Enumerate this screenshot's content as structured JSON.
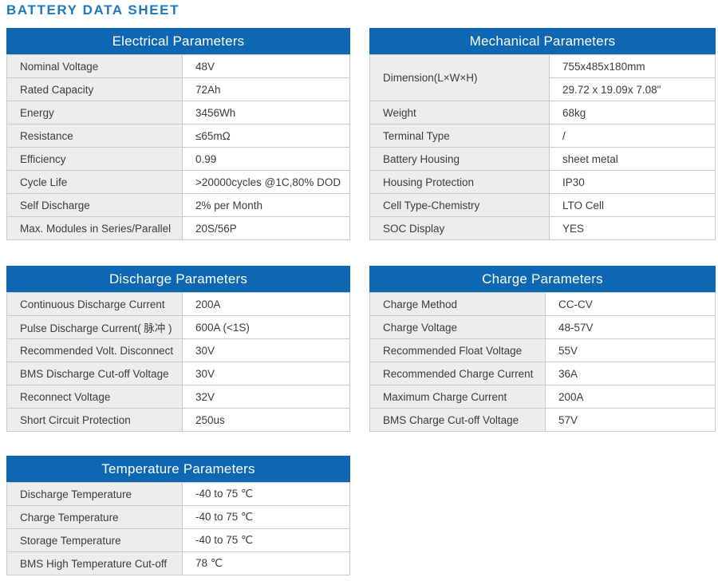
{
  "page_title": "BATTERY DATA SHEET",
  "colors": {
    "header_blue": "#0e67b2",
    "title_blue": "#1b78c1",
    "label_cell_bg": "#ededed",
    "border_gray": "#c9c9c9",
    "text": "#3b3b3b"
  },
  "tables": {
    "electrical": {
      "title": "Electrical Parameters",
      "rows": [
        {
          "label": "Nominal Voltage",
          "value": "48V"
        },
        {
          "label": "Rated Capacity",
          "value": "72Ah"
        },
        {
          "label": "Energy",
          "value": "3456Wh"
        },
        {
          "label": "Resistance",
          "value": "≤65mΩ"
        },
        {
          "label": "Efficiency",
          "value": "0.99"
        },
        {
          "label": "Cycle Life",
          "value": ">20000cycles @1C,80% DOD"
        },
        {
          "label": "Self Discharge",
          "value": "2% per Month"
        },
        {
          "label": "Max. Modules in Series/Parallel",
          "value": "20S/56P"
        }
      ]
    },
    "mechanical": {
      "title": "Mechanical Parameters",
      "rows": [
        {
          "label": "Dimension(L×W×H)",
          "value": [
            "755x485x180mm",
            "29.72 x 19.09x 7.08\""
          ]
        },
        {
          "label": "Weight",
          "value": "68kg"
        },
        {
          "label": "Terminal Type",
          "value": "/"
        },
        {
          "label": "Battery Housing",
          "value": "sheet metal"
        },
        {
          "label": "Housing Protection",
          "value": "IP30"
        },
        {
          "label": "Cell Type-Chemistry",
          "value": "LTO Cell"
        },
        {
          "label": "SOC Display",
          "value": "YES"
        }
      ]
    },
    "discharge": {
      "title": "Discharge Parameters",
      "rows": [
        {
          "label": "Continuous Discharge Current",
          "value": "200A"
        },
        {
          "label": "Pulse Discharge Current( 脉冲 )",
          "value": "600A (<1S)"
        },
        {
          "label": "Recommended Volt. Disconnect",
          "value": "30V"
        },
        {
          "label": "BMS Discharge Cut-off Voltage",
          "value": "30V"
        },
        {
          "label": "Reconnect Voltage",
          "value": "32V"
        },
        {
          "label": "Short Circuit Protection",
          "value": "250us"
        }
      ]
    },
    "charge": {
      "title": "Charge Parameters",
      "rows": [
        {
          "label": "Charge Method",
          "value": "CC-CV"
        },
        {
          "label": "Charge Voltage",
          "value": "48-57V"
        },
        {
          "label": "Recommended Float Voltage",
          "value": "55V"
        },
        {
          "label": "Recommended Charge Current",
          "value": "36A"
        },
        {
          "label": "Maximum Charge Current",
          "value": "200A"
        },
        {
          "label": "BMS Charge Cut-off Voltage",
          "value": "57V"
        }
      ]
    },
    "temperature": {
      "title": "Temperature Parameters",
      "rows": [
        {
          "label": "Discharge Temperature",
          "value": "-40 to 75 ℃"
        },
        {
          "label": "Charge Temperature",
          "value": "-40 to 75 ℃"
        },
        {
          "label": "Storage Temperature",
          "value": "-40 to 75 ℃"
        },
        {
          "label": "BMS High Temperature Cut-off",
          "value": "78 ℃"
        }
      ]
    }
  }
}
